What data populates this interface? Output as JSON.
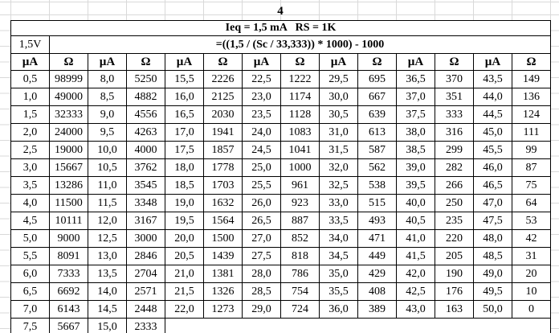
{
  "title": "4",
  "header": {
    "params": "Ieq = 1,5 mA   RS = 1K",
    "voltage": "1,5V",
    "formula": "=((1,5 / (Sc / 33,333)) * 1000) - 1000"
  },
  "colors": {
    "background": "#ffffff",
    "text": "#000000",
    "table_border": "#000000",
    "grid_line": "#d9d9d9"
  },
  "table": {
    "column_headers": [
      "µA",
      "Ω",
      "µA",
      "Ω",
      "µA",
      "Ω",
      "µA",
      "Ω",
      "µA",
      "Ω",
      "µA",
      "Ω",
      "µA",
      "Ω"
    ],
    "rows": [
      [
        "0,5",
        "98999",
        "8,0",
        "5250",
        "15,5",
        "2226",
        "22,5",
        "1222",
        "29,5",
        "695",
        "36,5",
        "370",
        "43,5",
        "149"
      ],
      [
        "1,0",
        "49000",
        "8,5",
        "4882",
        "16,0",
        "2125",
        "23,0",
        "1174",
        "30,0",
        "667",
        "37,0",
        "351",
        "44,0",
        "136"
      ],
      [
        "1,5",
        "32333",
        "9,0",
        "4556",
        "16,5",
        "2030",
        "23,5",
        "1128",
        "30,5",
        "639",
        "37,5",
        "333",
        "44,5",
        "124"
      ],
      [
        "2,0",
        "24000",
        "9,5",
        "4263",
        "17,0",
        "1941",
        "24,0",
        "1083",
        "31,0",
        "613",
        "38,0",
        "316",
        "45,0",
        "111"
      ],
      [
        "2,5",
        "19000",
        "10,0",
        "4000",
        "17,5",
        "1857",
        "24,5",
        "1041",
        "31,5",
        "587",
        "38,5",
        "299",
        "45,5",
        "99"
      ],
      [
        "3,0",
        "15667",
        "10,5",
        "3762",
        "18,0",
        "1778",
        "25,0",
        "1000",
        "32,0",
        "562",
        "39,0",
        "282",
        "46,0",
        "87"
      ],
      [
        "3,5",
        "13286",
        "11,0",
        "3545",
        "18,5",
        "1703",
        "25,5",
        "961",
        "32,5",
        "538",
        "39,5",
        "266",
        "46,5",
        "75"
      ],
      [
        "4,0",
        "11500",
        "11,5",
        "3348",
        "19,0",
        "1632",
        "26,0",
        "923",
        "33,0",
        "515",
        "40,0",
        "250",
        "47,0",
        "64"
      ],
      [
        "4,5",
        "10111",
        "12,0",
        "3167",
        "19,5",
        "1564",
        "26,5",
        "887",
        "33,5",
        "493",
        "40,5",
        "235",
        "47,5",
        "53"
      ],
      [
        "5,0",
        "9000",
        "12,5",
        "3000",
        "20,0",
        "1500",
        "27,0",
        "852",
        "34,0",
        "471",
        "41,0",
        "220",
        "48,0",
        "42"
      ],
      [
        "5,5",
        "8091",
        "13,0",
        "2846",
        "20,5",
        "1439",
        "27,5",
        "818",
        "34,5",
        "449",
        "41,5",
        "205",
        "48,5",
        "31"
      ],
      [
        "6,0",
        "7333",
        "13,5",
        "2704",
        "21,0",
        "1381",
        "28,0",
        "786",
        "35,0",
        "429",
        "42,0",
        "190",
        "49,0",
        "20"
      ],
      [
        "6,5",
        "6692",
        "14,0",
        "2571",
        "21,5",
        "1326",
        "28,5",
        "754",
        "35,5",
        "408",
        "42,5",
        "176",
        "49,5",
        "10"
      ],
      [
        "7,0",
        "6143",
        "14,5",
        "2448",
        "22,0",
        "1273",
        "29,0",
        "724",
        "36,0",
        "389",
        "43,0",
        "163",
        "50,0",
        "0"
      ],
      [
        "7,5",
        "5667",
        "15,0",
        "2333"
      ]
    ]
  }
}
